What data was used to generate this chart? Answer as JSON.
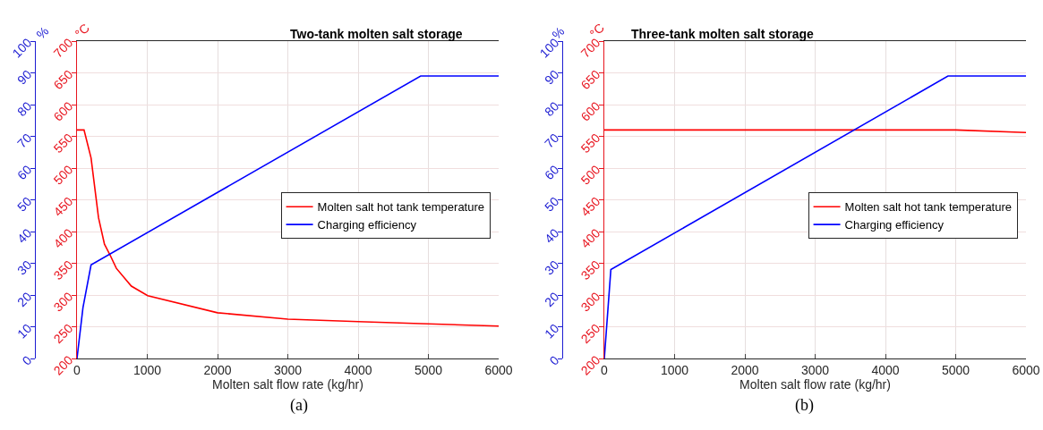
{
  "chart_data": [
    {
      "type": "line",
      "title": "Two-tank molten salt storage",
      "xlabel": "Molten salt flow rate (kg/hr)",
      "ylabel": "°C",
      "y2label": "%",
      "xlim": [
        0,
        6000
      ],
      "xticks": [
        0,
        1000,
        2000,
        3000,
        4000,
        5000,
        6000
      ],
      "ylim": [
        200,
        700
      ],
      "yticks": [
        200,
        250,
        300,
        350,
        400,
        450,
        500,
        550,
        600,
        650,
        700
      ],
      "y2lim": [
        0,
        100
      ],
      "y2ticks": [
        0,
        10,
        20,
        30,
        40,
        50,
        60,
        70,
        80,
        90,
        100
      ],
      "grid": true,
      "legend": "right",
      "annotations": [
        "(a)"
      ],
      "series": [
        {
          "name": "Molten salt hot tank temperature",
          "color": "#ff0000",
          "axis": "y",
          "x": [
            0,
            100,
            200,
            306,
            391,
            475,
            560,
            773,
            1006,
            2000,
            3000,
            4000,
            4890,
            6000
          ],
          "values": [
            560,
            560,
            516,
            422,
            380,
            362,
            342,
            314,
            299,
            272,
            262,
            258,
            255,
            251
          ]
        },
        {
          "name": "Charging efficiency",
          "color": "#0000ff",
          "axis": "y2",
          "x": [
            0,
            85,
            200,
            4890,
            6000
          ],
          "values": [
            0,
            16,
            29.5,
            89,
            89
          ]
        }
      ]
    },
    {
      "type": "line",
      "title": "Three-tank molten salt storage",
      "xlabel": "Molten salt flow rate (kg/hr)",
      "ylabel": "°C",
      "y2label": "%",
      "xlim": [
        0,
        6000
      ],
      "xticks": [
        0,
        1000,
        2000,
        3000,
        4000,
        5000,
        6000
      ],
      "ylim": [
        200,
        700
      ],
      "yticks": [
        200,
        250,
        300,
        350,
        400,
        450,
        500,
        550,
        600,
        650,
        700
      ],
      "y2lim": [
        0,
        100
      ],
      "y2ticks": [
        0,
        10,
        20,
        30,
        40,
        50,
        60,
        70,
        80,
        90,
        100
      ],
      "grid": true,
      "legend": "right",
      "annotations": [
        "(b)"
      ],
      "series": [
        {
          "name": "Molten salt hot tank temperature",
          "color": "#ff0000",
          "axis": "y",
          "x": [
            0,
            5000,
            6000
          ],
          "values": [
            560,
            560,
            556
          ]
        },
        {
          "name": "Charging efficiency",
          "color": "#0000ff",
          "axis": "y2",
          "x": [
            0,
            93,
            4890,
            6000
          ],
          "values": [
            0,
            28,
            89,
            89
          ]
        }
      ]
    }
  ]
}
